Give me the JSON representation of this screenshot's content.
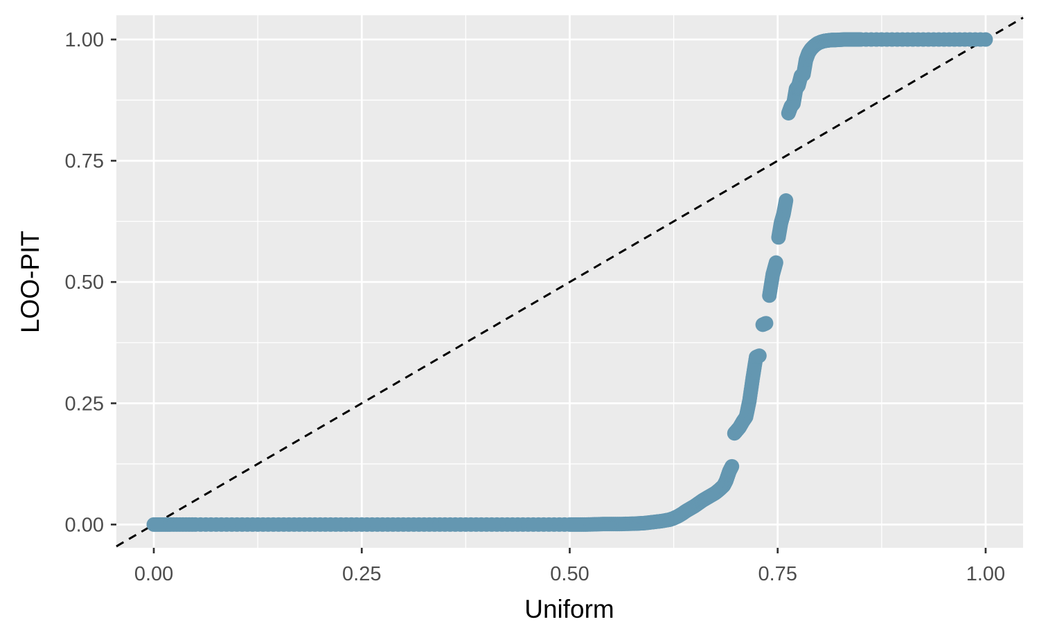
{
  "chart_data": {
    "type": "scatter",
    "xlabel": "Uniform",
    "ylabel": "LOO-PIT",
    "xlim": [
      -0.045,
      1.045
    ],
    "ylim": [
      -0.048,
      1.05
    ],
    "x_ticks": [
      0,
      0.25,
      0.5,
      0.75,
      1.0
    ],
    "x_tick_labels": [
      "0.00",
      "0.25",
      "0.50",
      "0.75",
      "1.00"
    ],
    "y_ticks": [
      0,
      0.25,
      0.5,
      0.75,
      1.0
    ],
    "y_tick_labels": [
      "0.00",
      "0.25",
      "0.50",
      "0.75",
      "1.00"
    ],
    "grid": true,
    "reference_line": {
      "style": "dashed",
      "slope": 1,
      "intercept": 0,
      "color": "#000000"
    },
    "point_color": "#6497b1",
    "background_color": "#ebebeb",
    "series": [
      {
        "x": [
          0.0,
          0.02,
          0.05,
          0.1,
          0.15,
          0.2,
          0.25,
          0.3,
          0.35,
          0.4,
          0.45,
          0.5,
          0.52,
          0.54,
          0.56,
          0.58,
          0.59,
          0.6,
          0.61,
          0.62,
          0.625,
          0.63,
          0.635,
          0.64,
          0.645,
          0.65,
          0.655,
          0.66,
          0.665,
          0.67,
          0.675,
          0.68,
          0.685,
          0.688,
          0.69,
          0.692,
          0.695,
          0.698,
          0.7,
          0.704,
          0.708,
          0.712,
          0.716,
          0.72,
          0.724,
          0.728,
          0.732,
          0.736,
          0.74,
          0.744,
          0.748,
          0.751,
          0.754,
          0.757,
          0.76,
          0.763,
          0.766,
          0.769,
          0.772,
          0.775,
          0.778,
          0.781,
          0.784,
          0.787,
          0.79,
          0.794,
          0.798,
          0.802,
          0.806,
          0.81,
          0.815,
          0.82,
          0.83,
          0.84,
          0.85,
          0.9,
          0.95,
          1.0
        ],
        "y": [
          0.0,
          0.0,
          0.0,
          0.0,
          0.0,
          0.0,
          0.0,
          0.0,
          0.0,
          0.0,
          0.0,
          0.0,
          0.0,
          0.001,
          0.001,
          0.002,
          0.003,
          0.005,
          0.007,
          0.01,
          0.013,
          0.017,
          0.022,
          0.028,
          0.033,
          0.038,
          0.044,
          0.05,
          0.055,
          0.06,
          0.065,
          0.072,
          0.08,
          0.09,
          0.1,
          0.11,
          0.12,
          0.188,
          0.192,
          0.2,
          0.212,
          0.222,
          0.255,
          0.302,
          0.345,
          0.348,
          0.412,
          0.415,
          0.472,
          0.515,
          0.54,
          0.592,
          0.622,
          0.64,
          0.668,
          0.848,
          0.862,
          0.868,
          0.898,
          0.905,
          0.925,
          0.928,
          0.958,
          0.972,
          0.98,
          0.987,
          0.992,
          0.995,
          0.997,
          0.998,
          0.999,
          0.999,
          1.0,
          1.0,
          1.0,
          1.0,
          1.0,
          1.0
        ]
      }
    ]
  }
}
